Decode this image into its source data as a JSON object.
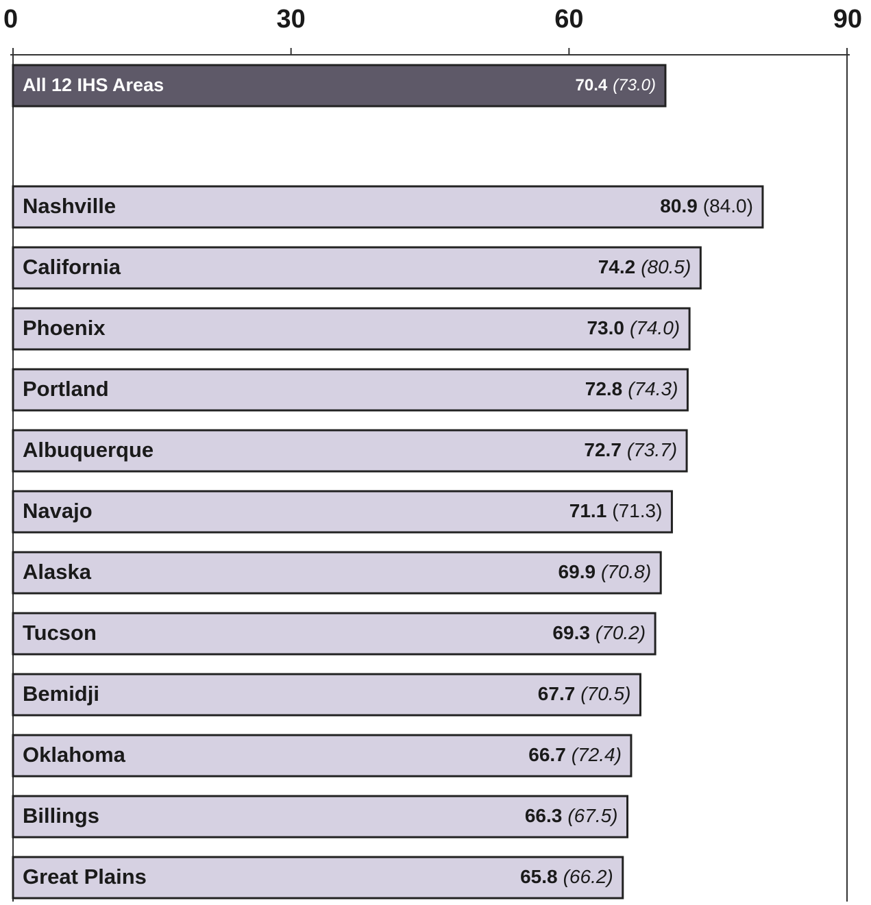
{
  "chart_data": {
    "type": "bar",
    "orientation": "horizontal",
    "categories": [
      "All 12 IHS Areas",
      "Nashville",
      "California",
      "Phoenix",
      "Portland",
      "Albuquerque",
      "Navajo",
      "Alaska",
      "Tucson",
      "Bemidji",
      "Oklahoma",
      "Billings",
      "Great Plains"
    ],
    "values": [
      70.4,
      80.9,
      74.2,
      73,
      72.8,
      72.7,
      71.1,
      69.9,
      69.3,
      67.7,
      66.7,
      66.3,
      65.8
    ],
    "value_labels": [
      "70.4",
      "80.9",
      "74.2",
      "73.0",
      "72.8",
      "72.7",
      "71.1",
      "69.9",
      "69.3",
      "67.7",
      "66.7",
      "66.3",
      "65.8"
    ],
    "secondary_labels": [
      "(73.0)",
      "(84.0)",
      "(80.5)",
      "(74.0)",
      "(74.3)",
      "(73.7)",
      "(71.3)",
      "(70.8)",
      "(70.2)",
      "(70.5)",
      "(72.4)",
      "(67.5)",
      "(66.2)"
    ],
    "secondary_italic": [
      true,
      false,
      true,
      true,
      true,
      true,
      false,
      true,
      true,
      true,
      true,
      true,
      true
    ],
    "colors": [
      "#5e5968",
      "#d6d1e2",
      "#d6d1e2",
      "#d6d1e2",
      "#d6d1e2",
      "#d6d1e2",
      "#d6d1e2",
      "#d6d1e2",
      "#d6d1e2",
      "#d6d1e2",
      "#d6d1e2",
      "#d6d1e2",
      "#d6d1e2"
    ],
    "label_colors": [
      "#ffffff",
      "#1a1a1a",
      "#1a1a1a",
      "#1a1a1a",
      "#1a1a1a",
      "#1a1a1a",
      "#1a1a1a",
      "#1a1a1a",
      "#1a1a1a",
      "#1a1a1a",
      "#1a1a1a",
      "#1a1a1a",
      "#1a1a1a"
    ],
    "xlim": [
      0,
      90
    ],
    "xticks": [
      0,
      30,
      60,
      90
    ]
  }
}
